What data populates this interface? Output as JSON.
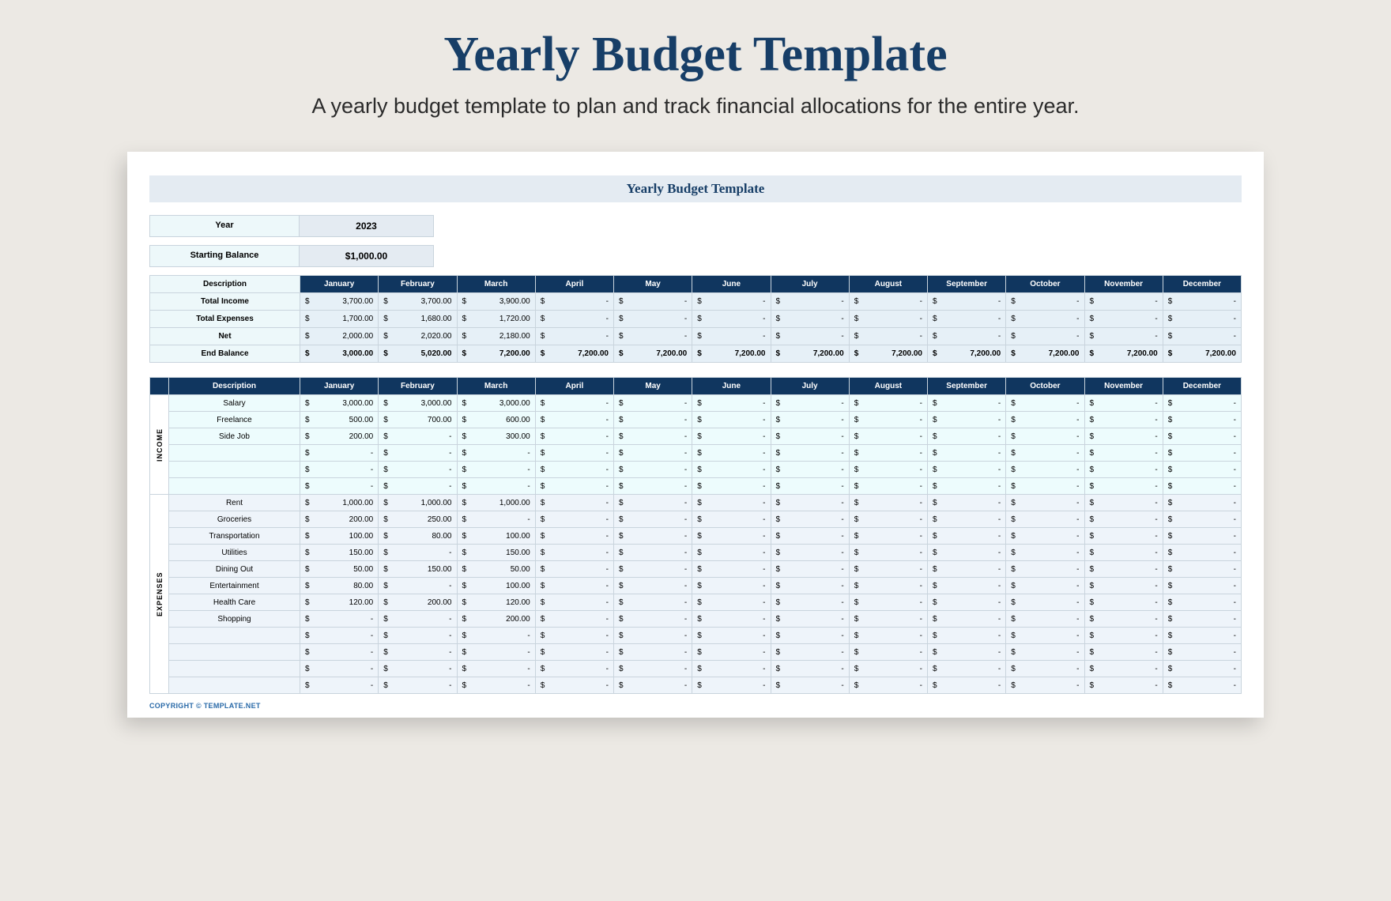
{
  "page": {
    "title": "Yearly Budget Template",
    "subtitle": "A yearly budget template to plan and track financial allocations for the entire year.",
    "sheet_title": "Yearly Budget Template",
    "copyright": "COPYRIGHT © TEMPLATE.NET"
  },
  "colors": {
    "page_bg": "#ece9e4",
    "title": "#173e67",
    "header_dark": "#10365f",
    "header_light": "#e4ebf2",
    "pale_blue": "#edf8fa",
    "summary_cell": "#e6f0f7",
    "income_cell": "#edfcfd",
    "expense_cell": "#eef4fa",
    "border": "#c9d4dd",
    "link": "#2a6aa8"
  },
  "meta": {
    "year_label": "Year",
    "year_value": "2023",
    "starting_balance_label": "Starting Balance",
    "starting_balance_value": "$1,000.00"
  },
  "months": [
    "January",
    "February",
    "March",
    "April",
    "May",
    "June",
    "July",
    "August",
    "September",
    "October",
    "November",
    "December"
  ],
  "summary": {
    "description_header": "Description",
    "rows": [
      {
        "label": "Total Income",
        "values": [
          "3,700.00",
          "3,700.00",
          "3,900.00",
          "-",
          "-",
          "-",
          "-",
          "-",
          "-",
          "-",
          "-",
          "-"
        ]
      },
      {
        "label": "Total Expenses",
        "values": [
          "1,700.00",
          "1,680.00",
          "1,720.00",
          "-",
          "-",
          "-",
          "-",
          "-",
          "-",
          "-",
          "-",
          "-"
        ]
      },
      {
        "label": "Net",
        "values": [
          "2,000.00",
          "2,020.00",
          "2,180.00",
          "-",
          "-",
          "-",
          "-",
          "-",
          "-",
          "-",
          "-",
          "-"
        ]
      },
      {
        "label": "End Balance",
        "values": [
          "3,000.00",
          "5,020.00",
          "7,200.00",
          "7,200.00",
          "7,200.00",
          "7,200.00",
          "7,200.00",
          "7,200.00",
          "7,200.00",
          "7,200.00",
          "7,200.00",
          "7,200.00"
        ],
        "bold": true
      }
    ]
  },
  "detail": {
    "description_header": "Description",
    "sections": [
      {
        "label": "INCOME",
        "rows": [
          {
            "label": "Salary",
            "values": [
              "3,000.00",
              "3,000.00",
              "3,000.00",
              "-",
              "-",
              "-",
              "-",
              "-",
              "-",
              "-",
              "-",
              "-"
            ]
          },
          {
            "label": "Freelance",
            "values": [
              "500.00",
              "700.00",
              "600.00",
              "-",
              "-",
              "-",
              "-",
              "-",
              "-",
              "-",
              "-",
              "-"
            ]
          },
          {
            "label": "Side Job",
            "values": [
              "200.00",
              "-",
              "300.00",
              "-",
              "-",
              "-",
              "-",
              "-",
              "-",
              "-",
              "-",
              "-"
            ]
          },
          {
            "label": "",
            "values": [
              "-",
              "-",
              "-",
              "-",
              "-",
              "-",
              "-",
              "-",
              "-",
              "-",
              "-",
              "-"
            ]
          },
          {
            "label": "",
            "values": [
              "-",
              "-",
              "-",
              "-",
              "-",
              "-",
              "-",
              "-",
              "-",
              "-",
              "-",
              "-"
            ]
          },
          {
            "label": "",
            "values": [
              "-",
              "-",
              "-",
              "-",
              "-",
              "-",
              "-",
              "-",
              "-",
              "-",
              "-",
              "-"
            ]
          }
        ]
      },
      {
        "label": "EXPENSES",
        "rows": [
          {
            "label": "Rent",
            "values": [
              "1,000.00",
              "1,000.00",
              "1,000.00",
              "-",
              "-",
              "-",
              "-",
              "-",
              "-",
              "-",
              "-",
              "-"
            ]
          },
          {
            "label": "Groceries",
            "values": [
              "200.00",
              "250.00",
              "-",
              "-",
              "-",
              "-",
              "-",
              "-",
              "-",
              "-",
              "-",
              "-"
            ]
          },
          {
            "label": "Transportation",
            "values": [
              "100.00",
              "80.00",
              "100.00",
              "-",
              "-",
              "-",
              "-",
              "-",
              "-",
              "-",
              "-",
              "-"
            ]
          },
          {
            "label": "Utilities",
            "values": [
              "150.00",
              "-",
              "150.00",
              "-",
              "-",
              "-",
              "-",
              "-",
              "-",
              "-",
              "-",
              "-"
            ]
          },
          {
            "label": "Dining Out",
            "values": [
              "50.00",
              "150.00",
              "50.00",
              "-",
              "-",
              "-",
              "-",
              "-",
              "-",
              "-",
              "-",
              "-"
            ]
          },
          {
            "label": "Entertainment",
            "values": [
              "80.00",
              "-",
              "100.00",
              "-",
              "-",
              "-",
              "-",
              "-",
              "-",
              "-",
              "-",
              "-"
            ]
          },
          {
            "label": "Health Care",
            "values": [
              "120.00",
              "200.00",
              "120.00",
              "-",
              "-",
              "-",
              "-",
              "-",
              "-",
              "-",
              "-",
              "-"
            ]
          },
          {
            "label": "Shopping",
            "values": [
              "-",
              "-",
              "200.00",
              "-",
              "-",
              "-",
              "-",
              "-",
              "-",
              "-",
              "-",
              "-"
            ]
          },
          {
            "label": "",
            "values": [
              "-",
              "-",
              "-",
              "-",
              "-",
              "-",
              "-",
              "-",
              "-",
              "-",
              "-",
              "-"
            ]
          },
          {
            "label": "",
            "values": [
              "-",
              "-",
              "-",
              "-",
              "-",
              "-",
              "-",
              "-",
              "-",
              "-",
              "-",
              "-"
            ]
          },
          {
            "label": "",
            "values": [
              "-",
              "-",
              "-",
              "-",
              "-",
              "-",
              "-",
              "-",
              "-",
              "-",
              "-",
              "-"
            ]
          },
          {
            "label": "",
            "values": [
              "-",
              "-",
              "-",
              "-",
              "-",
              "-",
              "-",
              "-",
              "-",
              "-",
              "-",
              "-"
            ]
          }
        ]
      }
    ]
  }
}
